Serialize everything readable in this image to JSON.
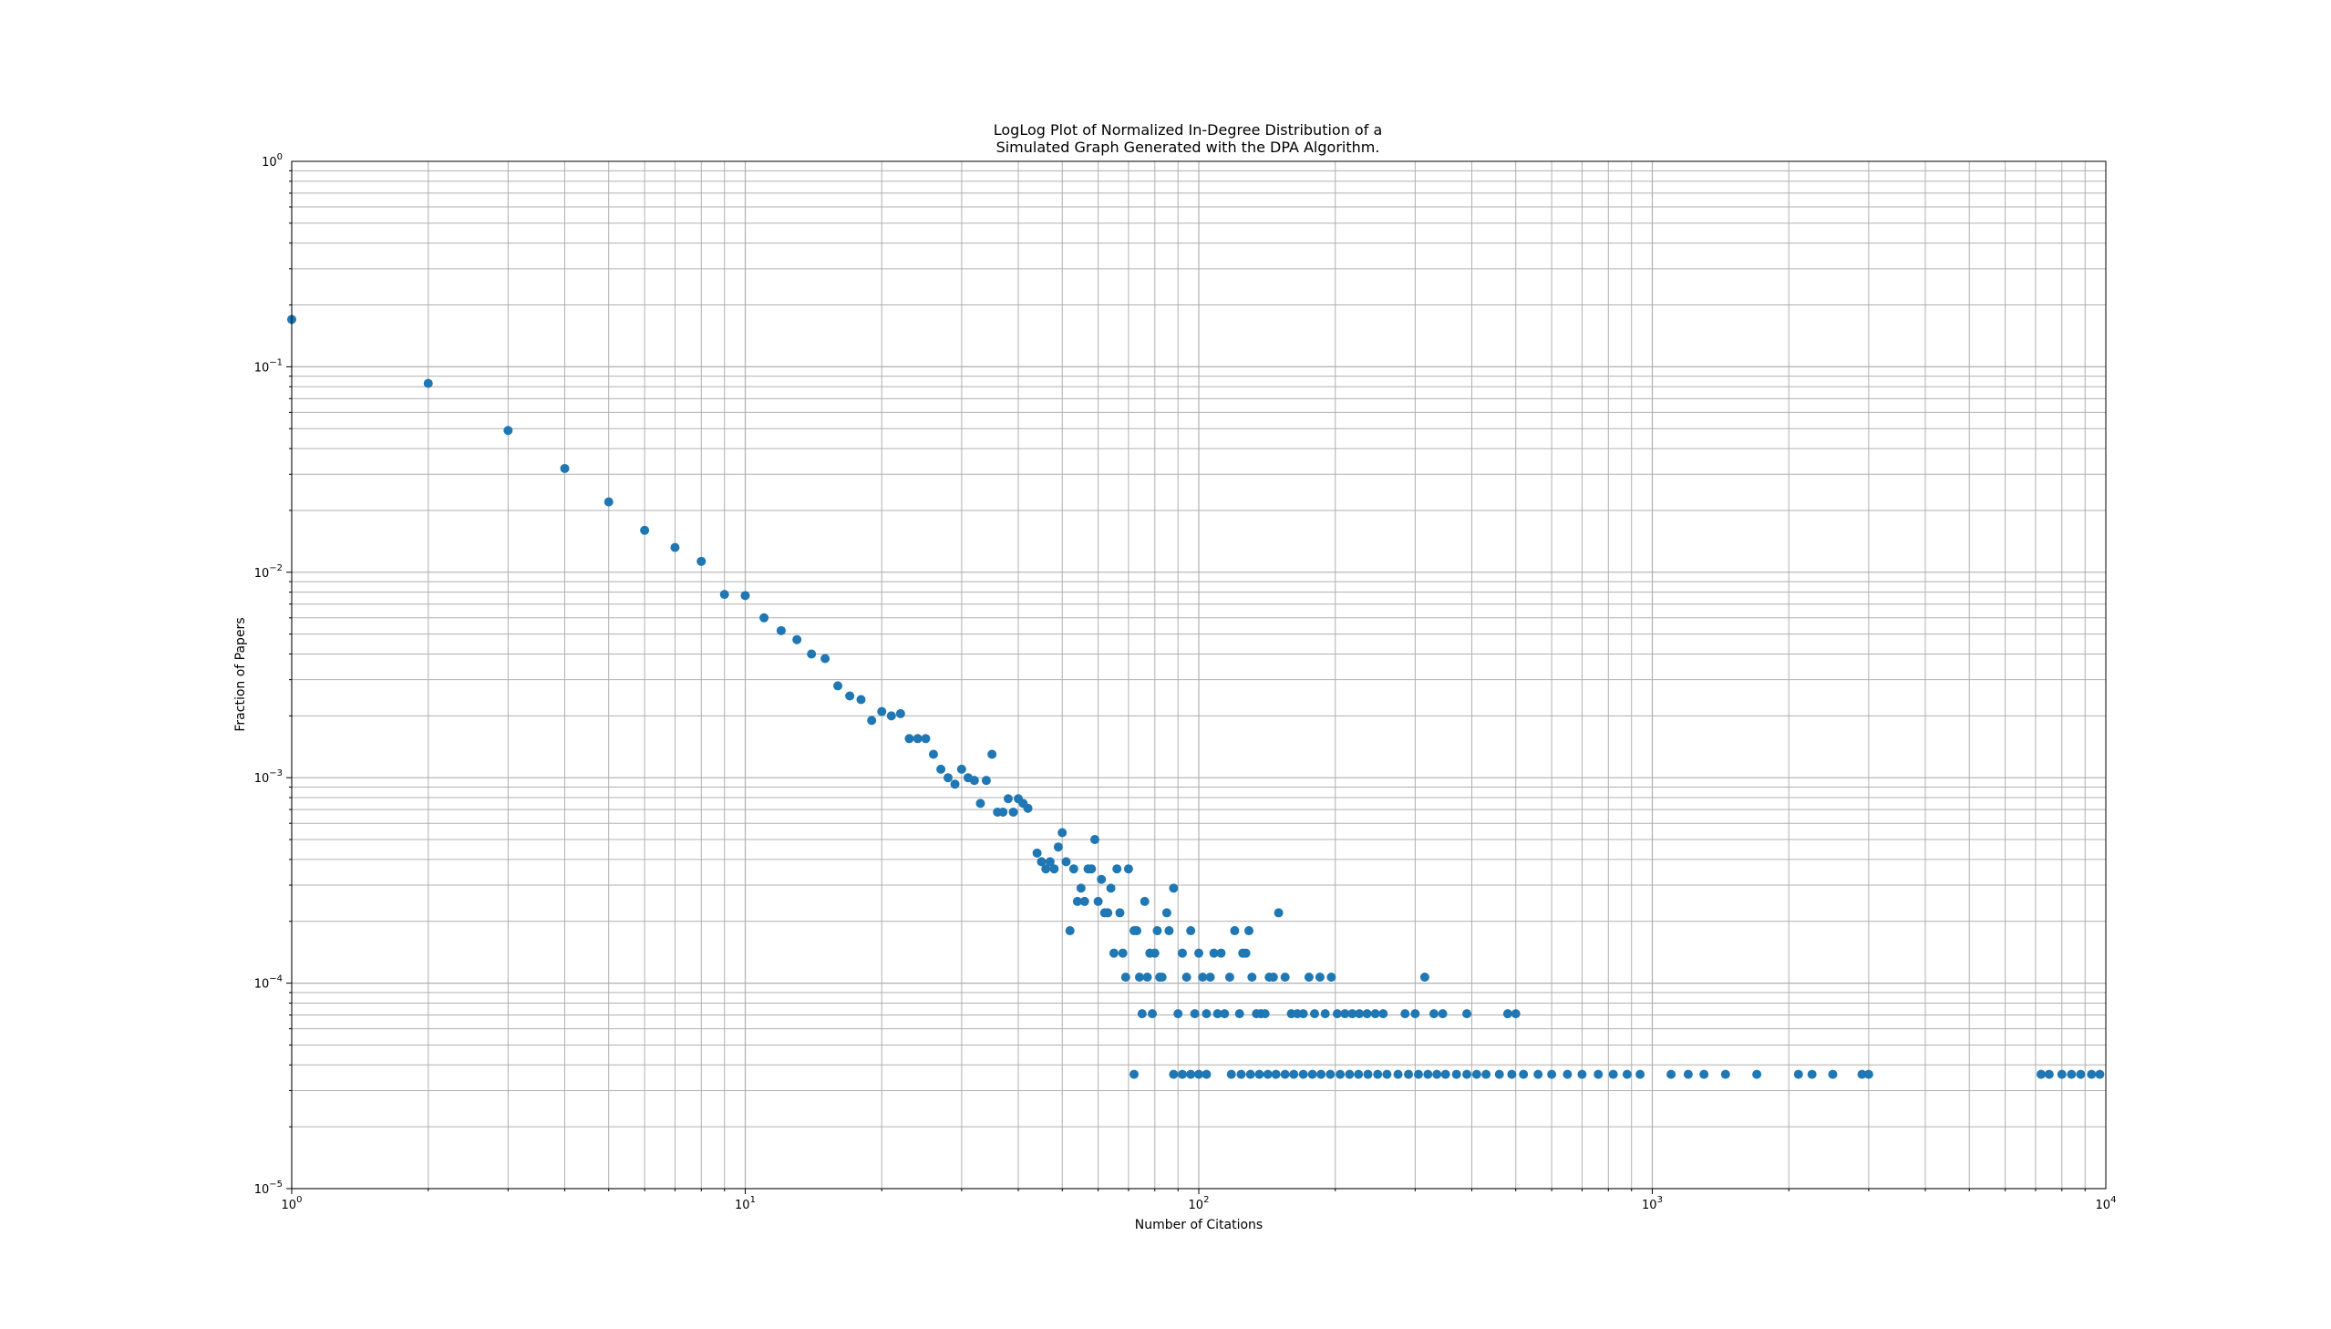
{
  "chart_data": {
    "type": "scatter",
    "title_line1": "LogLog Plot of Normalized In-Degree Distribution of a",
    "title_line2": "Simulated Graph Generated with the DPA Algorithm.",
    "xlabel": "Number of Citations",
    "ylabel": "Fraction of Papers",
    "xscale": "log",
    "yscale": "log",
    "xlim": [
      1,
      10000
    ],
    "ylim": [
      1e-05,
      1
    ],
    "grid": true,
    "marker_color": "#1f77b4",
    "x_ticks": [
      {
        "value": 1,
        "base": "10",
        "exp": "0"
      },
      {
        "value": 10,
        "base": "10",
        "exp": "1"
      },
      {
        "value": 100,
        "base": "10",
        "exp": "2"
      },
      {
        "value": 1000,
        "base": "10",
        "exp": "3"
      },
      {
        "value": 10000,
        "base": "10",
        "exp": "4"
      }
    ],
    "y_ticks": [
      {
        "value": 1e-05,
        "base": "10",
        "exp": "−5"
      },
      {
        "value": 0.0001,
        "base": "10",
        "exp": "−4"
      },
      {
        "value": 0.001,
        "base": "10",
        "exp": "−3"
      },
      {
        "value": 0.01,
        "base": "10",
        "exp": "−2"
      },
      {
        "value": 0.1,
        "base": "10",
        "exp": "−1"
      },
      {
        "value": 1,
        "base": "10",
        "exp": "0"
      }
    ],
    "points": [
      [
        1,
        0.17
      ],
      [
        2,
        0.083
      ],
      [
        3,
        0.049
      ],
      [
        4,
        0.032
      ],
      [
        5,
        0.022
      ],
      [
        6,
        0.016
      ],
      [
        7,
        0.0132
      ],
      [
        8,
        0.0113
      ],
      [
        9,
        0.0078
      ],
      [
        10,
        0.0077
      ],
      [
        11,
        0.006
      ],
      [
        12,
        0.0052
      ],
      [
        13,
        0.0047
      ],
      [
        14,
        0.004
      ],
      [
        15,
        0.0038
      ],
      [
        16,
        0.0028
      ],
      [
        17,
        0.0025
      ],
      [
        18,
        0.0024
      ],
      [
        19,
        0.0019
      ],
      [
        20,
        0.0021
      ],
      [
        21,
        0.002
      ],
      [
        22,
        0.00205
      ],
      [
        23,
        0.00155
      ],
      [
        24,
        0.00155
      ],
      [
        25,
        0.00155
      ],
      [
        26,
        0.0013
      ],
      [
        27,
        0.0011
      ],
      [
        28,
        0.001
      ],
      [
        29,
        0.00093
      ],
      [
        30,
        0.0011
      ],
      [
        31,
        0.001
      ],
      [
        32,
        0.00097
      ],
      [
        33,
        0.00075
      ],
      [
        34,
        0.00097
      ],
      [
        35,
        0.0013
      ],
      [
        36,
        0.00068
      ],
      [
        37,
        0.00068
      ],
      [
        38,
        0.00079
      ],
      [
        39,
        0.00068
      ],
      [
        40,
        0.00079
      ],
      [
        41,
        0.00075
      ],
      [
        42,
        0.00071
      ],
      [
        44,
        0.00043
      ],
      [
        45,
        0.00039
      ],
      [
        46,
        0.00036
      ],
      [
        47,
        0.00039
      ],
      [
        48,
        0.00036
      ],
      [
        49,
        0.00046
      ],
      [
        50,
        0.00054
      ],
      [
        51,
        0.00039
      ],
      [
        52,
        0.00018
      ],
      [
        53,
        0.00036
      ],
      [
        54,
        0.00025
      ],
      [
        55,
        0.00029
      ],
      [
        56,
        0.00025
      ],
      [
        57,
        0.00036
      ],
      [
        58,
        0.00036
      ],
      [
        59,
        0.0005
      ],
      [
        60,
        0.00025
      ],
      [
        61,
        0.00032
      ],
      [
        62,
        0.00022
      ],
      [
        63,
        0.00022
      ],
      [
        64,
        0.00029
      ],
      [
        65,
        0.00014
      ],
      [
        66,
        0.00036
      ],
      [
        67,
        0.00022
      ],
      [
        68,
        0.00014
      ],
      [
        69,
        0.000107
      ],
      [
        70,
        0.00036
      ],
      [
        72,
        0.00018
      ],
      [
        73,
        0.00018
      ],
      [
        74,
        0.000107
      ],
      [
        75,
        7.1e-05
      ],
      [
        76,
        0.00025
      ],
      [
        77,
        0.000107
      ],
      [
        78,
        0.00014
      ],
      [
        79,
        7.1e-05
      ],
      [
        80,
        0.00014
      ],
      [
        81,
        0.00018
      ],
      [
        82,
        0.000107
      ],
      [
        83,
        0.000107
      ],
      [
        85,
        0.00022
      ],
      [
        86,
        0.00018
      ],
      [
        88,
        0.00029
      ],
      [
        90,
        7.1e-05
      ],
      [
        92,
        0.00014
      ],
      [
        94,
        0.000107
      ],
      [
        96,
        0.00018
      ],
      [
        98,
        7.1e-05
      ],
      [
        100,
        0.00014
      ],
      [
        102,
        0.000107
      ],
      [
        104,
        7.1e-05
      ],
      [
        106,
        0.000107
      ],
      [
        108,
        0.00014
      ],
      [
        110,
        7.1e-05
      ],
      [
        112,
        0.00014
      ],
      [
        114,
        7.1e-05
      ],
      [
        117,
        0.000107
      ],
      [
        120,
        0.00018
      ],
      [
        123,
        7.1e-05
      ],
      [
        125,
        0.00014
      ],
      [
        127,
        0.00014
      ],
      [
        129,
        0.00018
      ],
      [
        131,
        0.000107
      ],
      [
        134,
        7.1e-05
      ],
      [
        137,
        7.1e-05
      ],
      [
        140,
        7.1e-05
      ],
      [
        143,
        0.000107
      ],
      [
        146,
        0.000107
      ],
      [
        150,
        0.00022
      ],
      [
        155,
        0.000107
      ],
      [
        160,
        7.1e-05
      ],
      [
        165,
        7.1e-05
      ],
      [
        170,
        7.1e-05
      ],
      [
        175,
        0.000107
      ],
      [
        180,
        7.1e-05
      ],
      [
        185,
        0.000107
      ],
      [
        190,
        7.1e-05
      ],
      [
        196,
        0.000107
      ],
      [
        202,
        7.1e-05
      ],
      [
        210,
        7.1e-05
      ],
      [
        218,
        7.1e-05
      ],
      [
        226,
        7.1e-05
      ],
      [
        235,
        7.1e-05
      ],
      [
        245,
        7.1e-05
      ],
      [
        255,
        7.1e-05
      ],
      [
        285,
        7.1e-05
      ],
      [
        300,
        7.1e-05
      ],
      [
        315,
        0.000107
      ],
      [
        330,
        7.1e-05
      ],
      [
        345,
        7.1e-05
      ],
      [
        390,
        7.1e-05
      ],
      [
        480,
        7.1e-05
      ],
      [
        500,
        7.1e-05
      ],
      [
        72,
        3.6e-05
      ],
      [
        88,
        3.6e-05
      ],
      [
        92,
        3.6e-05
      ],
      [
        96,
        3.6e-05
      ],
      [
        100,
        3.6e-05
      ],
      [
        104,
        3.6e-05
      ],
      [
        118,
        3.6e-05
      ],
      [
        124,
        3.6e-05
      ],
      [
        130,
        3.6e-05
      ],
      [
        136,
        3.6e-05
      ],
      [
        142,
        3.6e-05
      ],
      [
        148,
        3.6e-05
      ],
      [
        155,
        3.6e-05
      ],
      [
        162,
        3.6e-05
      ],
      [
        170,
        3.6e-05
      ],
      [
        178,
        3.6e-05
      ],
      [
        186,
        3.6e-05
      ],
      [
        195,
        3.6e-05
      ],
      [
        205,
        3.6e-05
      ],
      [
        215,
        3.6e-05
      ],
      [
        225,
        3.6e-05
      ],
      [
        236,
        3.6e-05
      ],
      [
        248,
        3.6e-05
      ],
      [
        260,
        3.6e-05
      ],
      [
        275,
        3.6e-05
      ],
      [
        290,
        3.6e-05
      ],
      [
        305,
        3.6e-05
      ],
      [
        320,
        3.6e-05
      ],
      [
        335,
        3.6e-05
      ],
      [
        350,
        3.6e-05
      ],
      [
        370,
        3.6e-05
      ],
      [
        390,
        3.6e-05
      ],
      [
        410,
        3.6e-05
      ],
      [
        430,
        3.6e-05
      ],
      [
        460,
        3.6e-05
      ],
      [
        490,
        3.6e-05
      ],
      [
        520,
        3.6e-05
      ],
      [
        560,
        3.6e-05
      ],
      [
        600,
        3.6e-05
      ],
      [
        650,
        3.6e-05
      ],
      [
        700,
        3.6e-05
      ],
      [
        760,
        3.6e-05
      ],
      [
        820,
        3.6e-05
      ],
      [
        880,
        3.6e-05
      ],
      [
        940,
        3.6e-05
      ],
      [
        1100,
        3.6e-05
      ],
      [
        1200,
        3.6e-05
      ],
      [
        1300,
        3.6e-05
      ],
      [
        1450,
        3.6e-05
      ],
      [
        1700,
        3.6e-05
      ],
      [
        2100,
        3.6e-05
      ],
      [
        2250,
        3.6e-05
      ],
      [
        2500,
        3.6e-05
      ],
      [
        2900,
        3.6e-05
      ],
      [
        3000,
        3.6e-05
      ],
      [
        7200,
        3.6e-05
      ],
      [
        7500,
        3.6e-05
      ],
      [
        8000,
        3.6e-05
      ],
      [
        8400,
        3.6e-05
      ],
      [
        8800,
        3.6e-05
      ],
      [
        9300,
        3.6e-05
      ],
      [
        9700,
        3.6e-05
      ]
    ]
  }
}
